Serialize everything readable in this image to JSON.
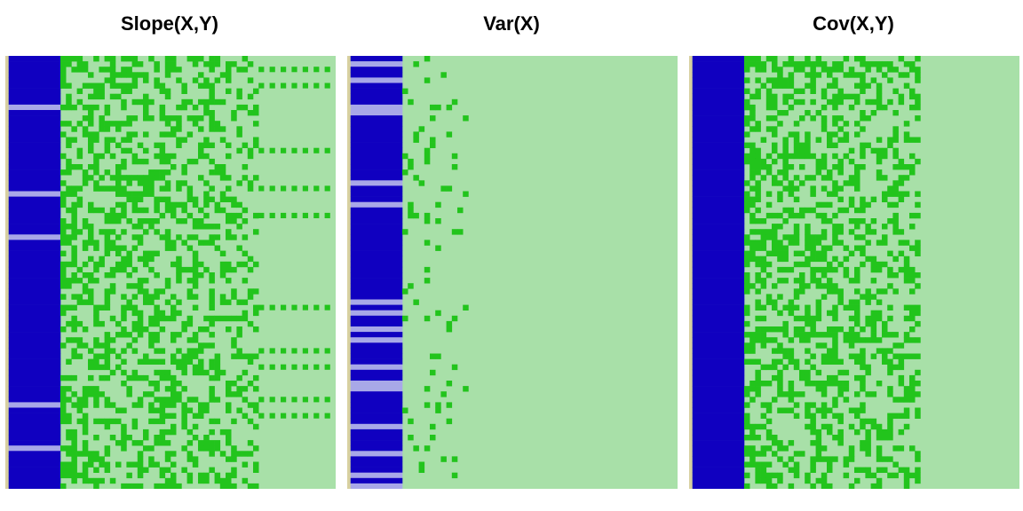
{
  "palette": {
    "blue": "#1000c0",
    "light_blue": "#a8a8e8",
    "green": "#22c41c",
    "light_green": "#a8e0a8",
    "tan": "#d8d0a0"
  },
  "chart_data": [
    {
      "type": "heatmap",
      "title": "Slope(X,Y)",
      "rows": 80,
      "cols": 60,
      "blue_cols": 10,
      "noise_cols": 36,
      "noise_density": 0.5,
      "light_rows": [
        9,
        25,
        33,
        64,
        72
      ],
      "dotted_rows": [
        2,
        5,
        17,
        24,
        29,
        46,
        54,
        57,
        63,
        66
      ],
      "seed": 11
    },
    {
      "type": "heatmap",
      "title": "Var(X)",
      "rows": 80,
      "cols": 60,
      "blue_cols": 10,
      "noise_cols": 12,
      "noise_density": 0.08,
      "light_rows": [
        1,
        4,
        9,
        10,
        23,
        27,
        45,
        47,
        50,
        52,
        57,
        60,
        61,
        68,
        73,
        77,
        79
      ],
      "dotted_rows": [],
      "seed": 22
    },
    {
      "type": "heatmap",
      "title": "Cov(X,Y)",
      "rows": 80,
      "cols": 60,
      "blue_cols": 10,
      "noise_cols": 32,
      "noise_density": 0.5,
      "light_rows": [],
      "dotted_rows": [],
      "seed": 33
    }
  ]
}
